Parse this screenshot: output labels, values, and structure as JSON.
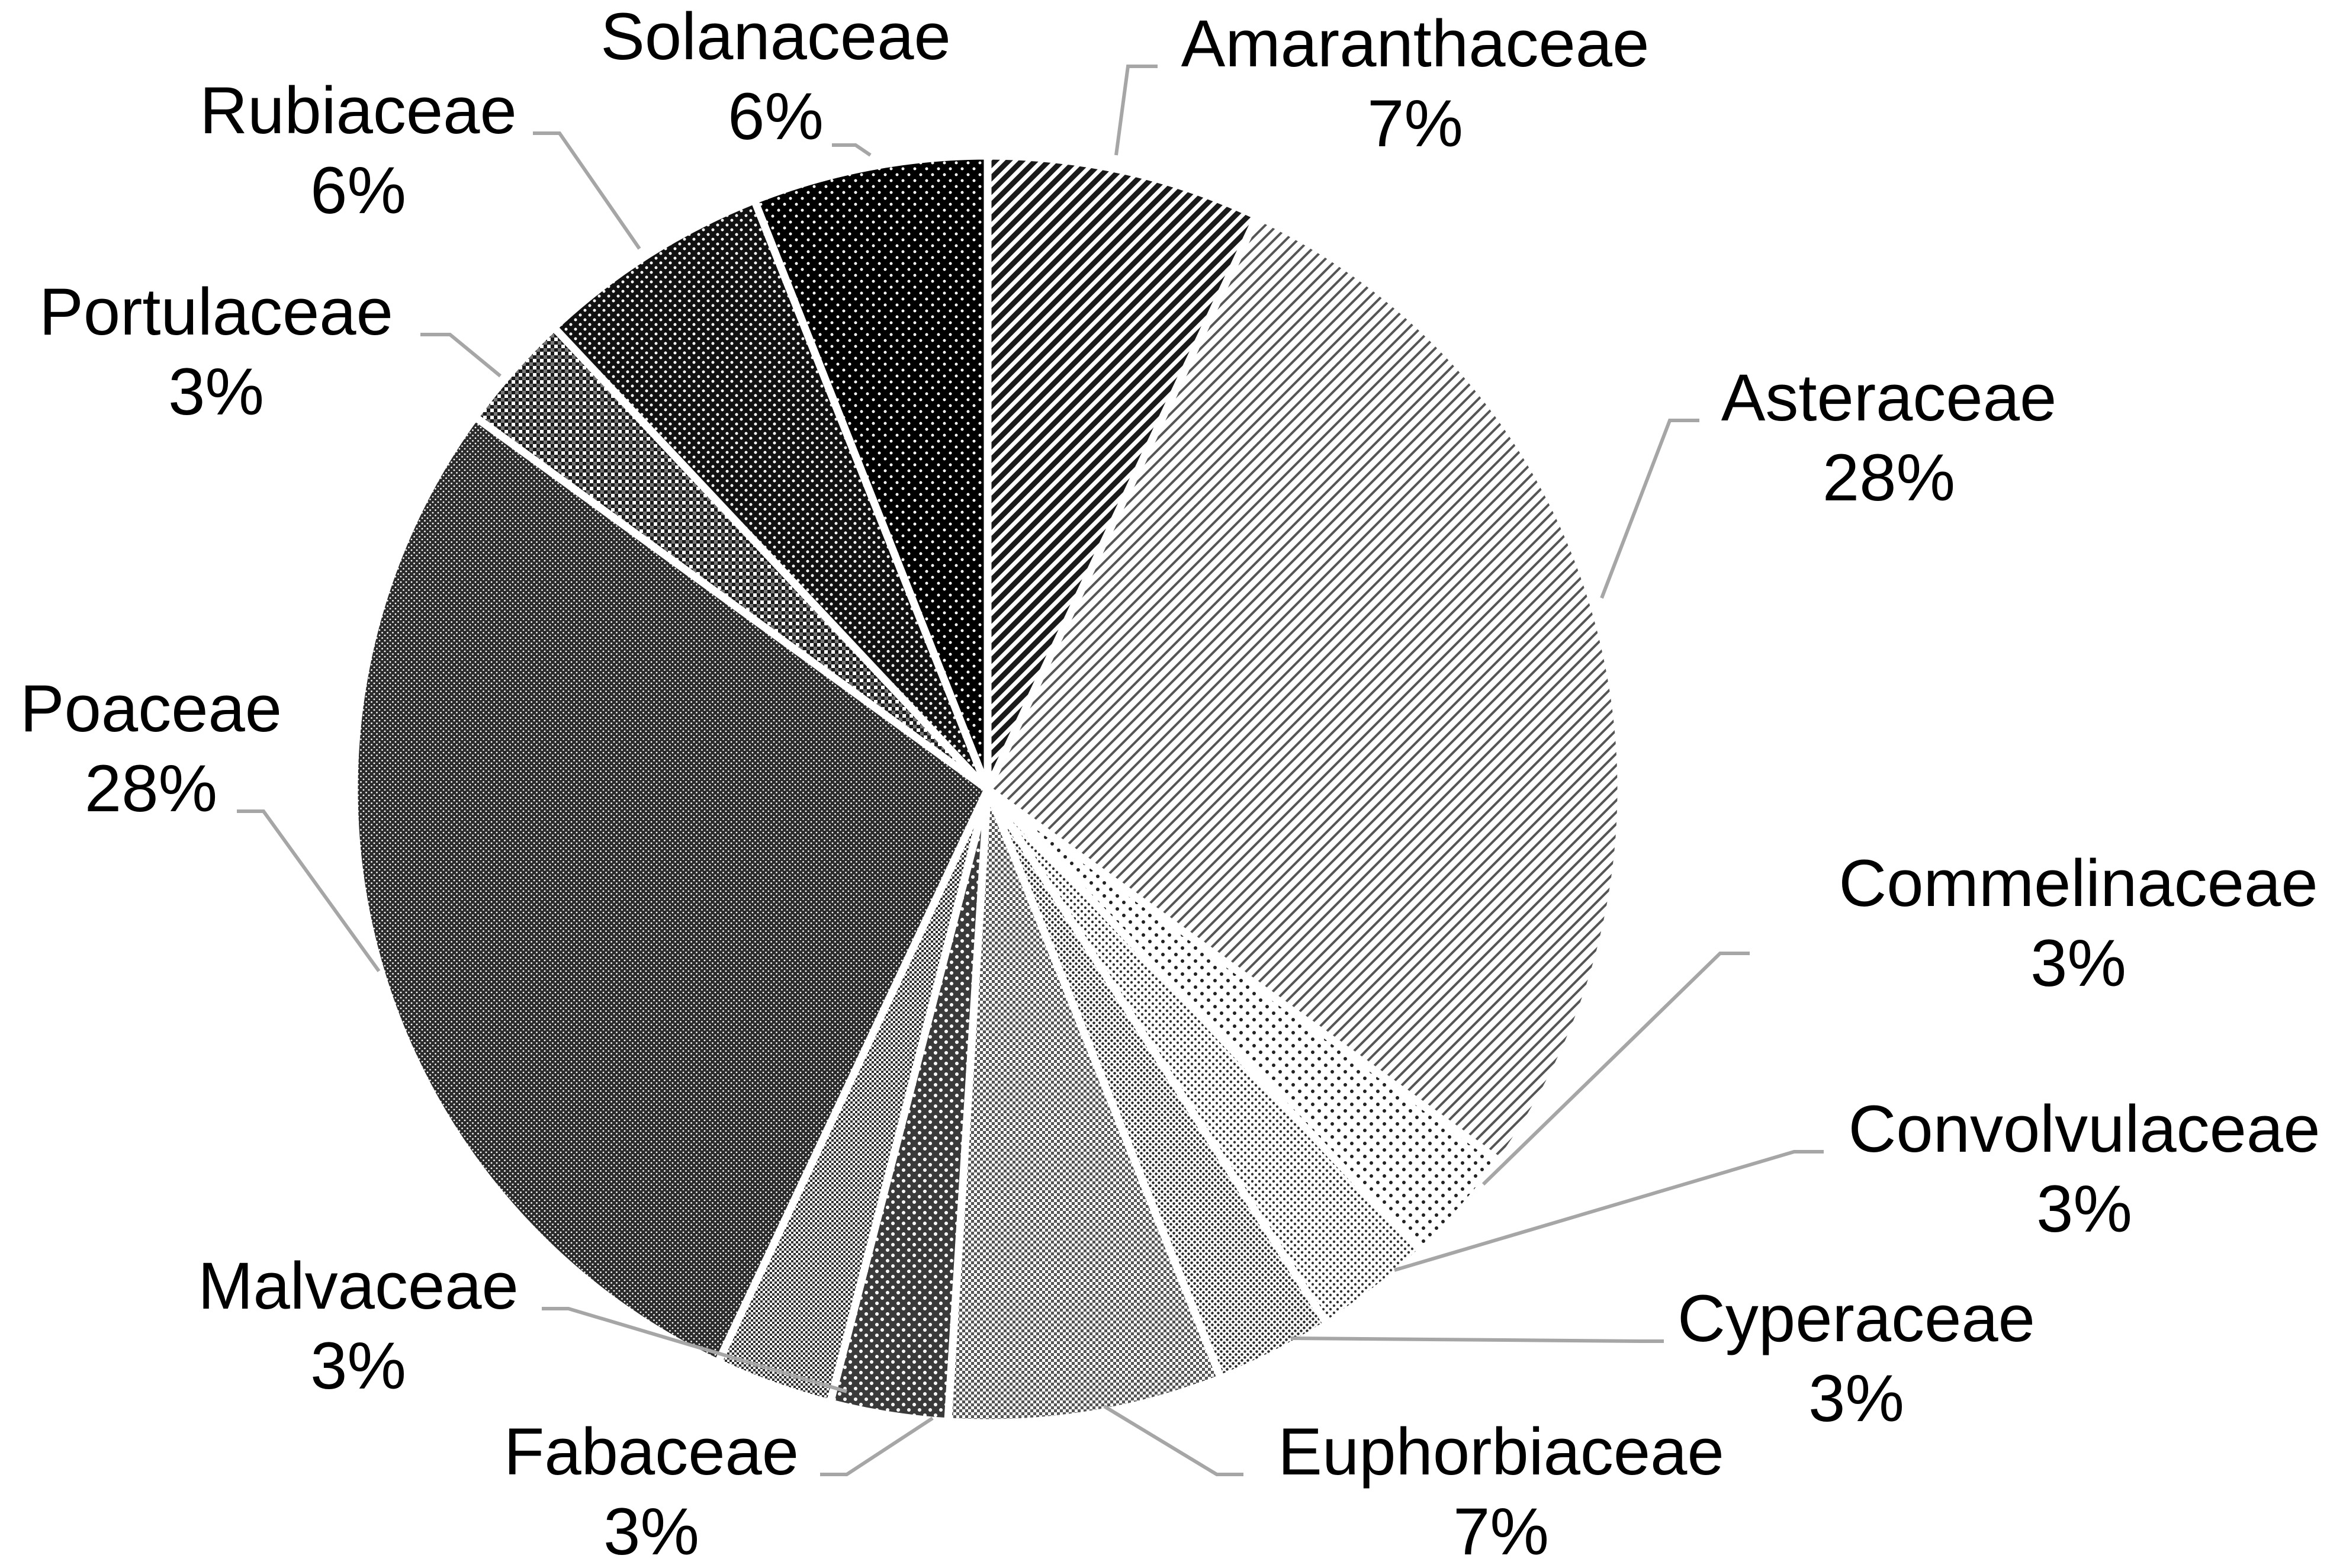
{
  "chart_data": {
    "type": "pie",
    "title": "",
    "slices": [
      {
        "label": "Amaranthaceae",
        "value": 7,
        "pct_label": "7%",
        "fill": "p-amaranth"
      },
      {
        "label": "Asteraceae",
        "value": 28,
        "pct_label": "28%",
        "fill": "p-aster"
      },
      {
        "label": "Commelinaceae",
        "value": 3,
        "pct_label": "3%",
        "fill": "p-commel"
      },
      {
        "label": "Convolvulaceae",
        "value": 3,
        "pct_label": "3%",
        "fill": "p-convol"
      },
      {
        "label": "Cyperaceae",
        "value": 3,
        "pct_label": "3%",
        "fill": "p-cyper"
      },
      {
        "label": "Euphorbiaceae",
        "value": 7,
        "pct_label": "7%",
        "fill": "p-euphor"
      },
      {
        "label": "Fabaceae",
        "value": 3,
        "pct_label": "3%",
        "fill": "p-fab"
      },
      {
        "label": "Malvaceae",
        "value": 3,
        "pct_label": "3%",
        "fill": "p-malv"
      },
      {
        "label": "Poaceae",
        "value": 28,
        "pct_label": "28%",
        "fill": "p-poa"
      },
      {
        "label": "Portulaceae",
        "value": 3,
        "pct_label": "3%",
        "fill": "p-portu"
      },
      {
        "label": "Rubiaceae",
        "value": 6,
        "pct_label": "6%",
        "fill": "p-rubi"
      },
      {
        "label": "Solanaceae",
        "value": 6,
        "pct_label": "6%",
        "fill": "p-solan"
      }
    ],
    "start": "12 o'clock",
    "direction": "clockwise",
    "legend": "none",
    "data_labels": "outside with leader lines"
  }
}
